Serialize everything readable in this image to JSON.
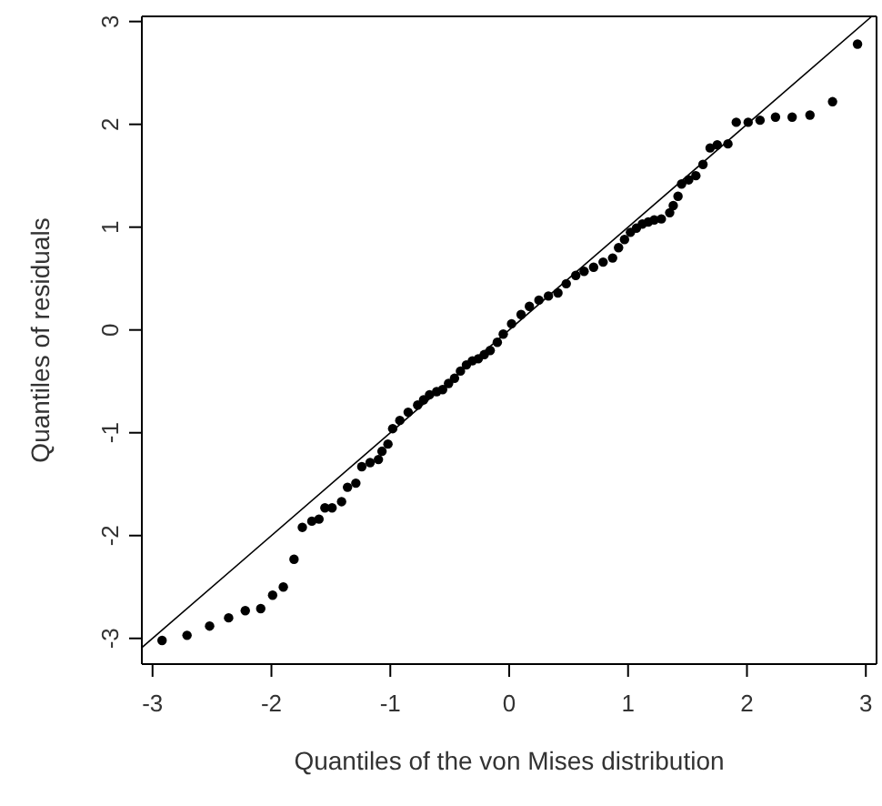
{
  "chart_data": {
    "type": "scatter",
    "xlabel": "Quantiles of the von Mises distribution",
    "ylabel": "Quantiles of residuals",
    "xlim": [
      -3.09,
      3.09
    ],
    "ylim": [
      -3.25,
      3.05
    ],
    "xticks": [
      -3,
      -2,
      -1,
      0,
      1,
      2,
      3
    ],
    "yticks": [
      -3,
      -2,
      -1,
      0,
      1,
      2,
      3
    ],
    "grid": false,
    "marker": "circle",
    "series": [
      {
        "color": "#000000",
        "x": [
          -2.92,
          -2.71,
          -2.52,
          -2.36,
          -2.22,
          -2.09,
          -1.99,
          -1.9,
          -1.81,
          -1.74,
          -1.66,
          -1.6,
          -1.55,
          -1.49,
          -1.41,
          -1.36,
          -1.29,
          -1.24,
          -1.17,
          -1.1,
          -1.07,
          -1.02,
          -0.98,
          -0.92,
          -0.85,
          -0.77,
          -0.72,
          -0.67,
          -0.61,
          -0.56,
          -0.51,
          -0.46,
          -0.41,
          -0.36,
          -0.31,
          -0.26,
          -0.21,
          -0.16,
          -0.1,
          -0.05,
          0.02,
          0.1,
          0.17,
          0.25,
          0.33,
          0.41,
          0.48,
          0.56,
          0.63,
          0.71,
          0.79,
          0.87,
          0.92,
          0.97,
          1.02,
          1.07,
          1.12,
          1.17,
          1.22,
          1.28,
          1.35,
          1.38,
          1.42,
          1.45,
          1.51,
          1.57,
          1.63,
          1.69,
          1.75,
          1.84,
          1.91,
          2.01,
          2.11,
          2.24,
          2.38,
          2.53,
          2.72,
          2.93
        ],
        "values": [
          -3.02,
          -2.97,
          -2.88,
          -2.8,
          -2.73,
          -2.71,
          -2.58,
          -2.5,
          -2.23,
          -1.92,
          -1.86,
          -1.84,
          -1.73,
          -1.73,
          -1.67,
          -1.53,
          -1.49,
          -1.33,
          -1.29,
          -1.26,
          -1.18,
          -1.11,
          -0.96,
          -0.88,
          -0.8,
          -0.73,
          -0.68,
          -0.63,
          -0.6,
          -0.58,
          -0.52,
          -0.47,
          -0.4,
          -0.34,
          -0.3,
          -0.28,
          -0.24,
          -0.2,
          -0.12,
          -0.04,
          0.06,
          0.15,
          0.23,
          0.29,
          0.33,
          0.36,
          0.45,
          0.53,
          0.57,
          0.61,
          0.66,
          0.7,
          0.8,
          0.88,
          0.95,
          0.99,
          1.03,
          1.05,
          1.07,
          1.08,
          1.14,
          1.21,
          1.3,
          1.42,
          1.46,
          1.5,
          1.61,
          1.77,
          1.8,
          1.81,
          2.02,
          2.02,
          2.04,
          2.07,
          2.07,
          2.09,
          2.22,
          2.78
        ]
      },
      {
        "type": "line",
        "color": "#000000",
        "marker": "none",
        "line_style": "solid",
        "x": [
          -3.09,
          3.05
        ],
        "values": [
          -3.09,
          3.05
        ]
      }
    ]
  }
}
